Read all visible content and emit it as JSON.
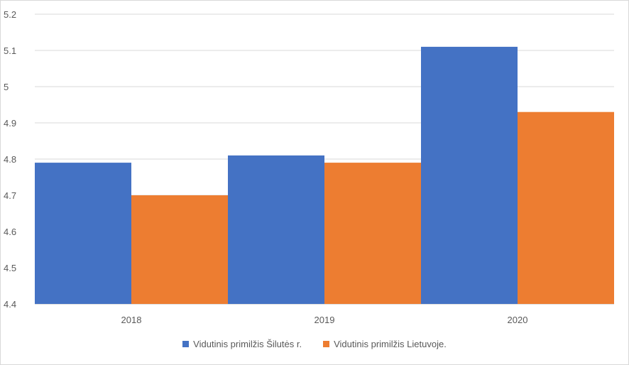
{
  "chart_data": {
    "type": "bar",
    "categories": [
      "2018",
      "2019",
      "2020"
    ],
    "series": [
      {
        "name": "Vidutinis primilžis Šilutės r.",
        "values": [
          4.79,
          4.81,
          5.11
        ],
        "color": "#4472C4"
      },
      {
        "name": "Vidutinis primilžis Lietuvoje.",
        "values": [
          4.7,
          4.79,
          4.93
        ],
        "color": "#ED7D31"
      }
    ],
    "ylim": [
      4.4,
      5.2
    ],
    "yticks": [
      "4.4",
      "4.5",
      "4.6",
      "4.7",
      "4.8",
      "4.9",
      "5",
      "5.1",
      "5.2"
    ],
    "grid": true,
    "legend_position": "bottom"
  }
}
